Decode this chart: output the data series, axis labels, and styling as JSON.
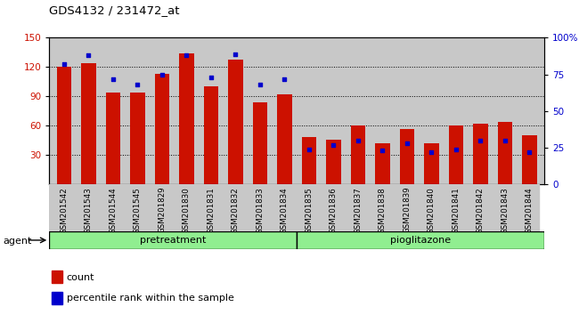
{
  "title": "GDS4132 / 231472_at",
  "categories": [
    "GSM201542",
    "GSM201543",
    "GSM201544",
    "GSM201545",
    "GSM201829",
    "GSM201830",
    "GSM201831",
    "GSM201832",
    "GSM201833",
    "GSM201834",
    "GSM201835",
    "GSM201836",
    "GSM201837",
    "GSM201838",
    "GSM201839",
    "GSM201840",
    "GSM201841",
    "GSM201842",
    "GSM201843",
    "GSM201844"
  ],
  "bar_values": [
    120,
    124,
    94,
    94,
    113,
    134,
    100,
    128,
    84,
    92,
    48,
    46,
    60,
    42,
    57,
    42,
    60,
    62,
    64,
    50
  ],
  "percentile_values": [
    82,
    88,
    72,
    68,
    75,
    88,
    73,
    89,
    68,
    72,
    24,
    27,
    30,
    23,
    28,
    22,
    24,
    30,
    30,
    22
  ],
  "ylim_left": [
    0,
    150
  ],
  "ylim_right": [
    0,
    100
  ],
  "yticks_left": [
    30,
    60,
    90,
    120,
    150
  ],
  "yticks_right": [
    0,
    25,
    50,
    75,
    100
  ],
  "bar_color": "#cc1100",
  "percentile_color": "#0000cc",
  "bg_color": "#c8c8c8",
  "pretreat_label": "pretreatment",
  "pioglit_label": "pioglitazone",
  "agent_label": "agent",
  "legend_count": "count",
  "legend_percentile": "percentile rank within the sample",
  "group_color": "#90ee90",
  "n_pretreat": 10,
  "n_pioglit": 10
}
